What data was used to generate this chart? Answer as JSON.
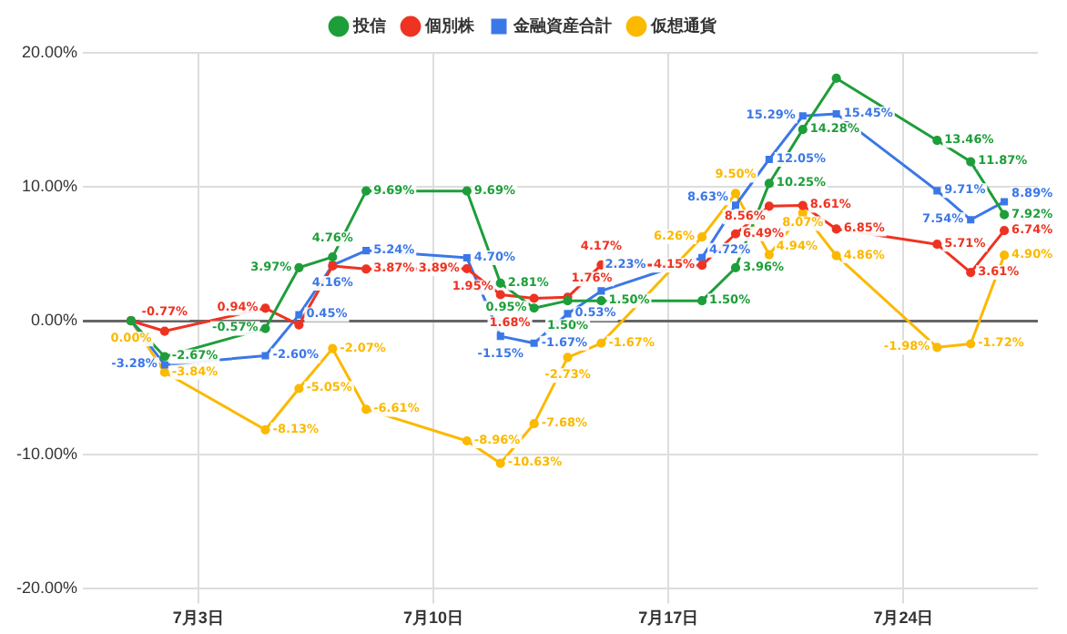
{
  "chart_data": {
    "type": "line",
    "legend": "top",
    "grid": true,
    "line_style": "solid",
    "x": [
      "--07-01",
      "--07-02",
      "--07-05",
      "--07-06",
      "--07-07",
      "--07-08",
      "--07-11",
      "--07-12",
      "--07-13",
      "--07-14",
      "--07-15",
      "--07-18",
      "--07-19",
      "--07-20",
      "--07-21",
      "--07-22",
      "--07-25",
      "--07-26",
      "--07-27"
    ],
    "xlim": [
      "--06-30",
      "--07-28"
    ],
    "xticks": [
      {
        "value": "--07-03",
        "label": "7月3日"
      },
      {
        "value": "--07-10",
        "label": "7月10日"
      },
      {
        "value": "--07-17",
        "label": "7月17日"
      },
      {
        "value": "--07-24",
        "label": "7月24日"
      }
    ],
    "ylim": [
      -20,
      20
    ],
    "yticks": [
      {
        "value": -20,
        "label": "-20.00%"
      },
      {
        "value": -10,
        "label": "-10.00%"
      },
      {
        "value": 0,
        "label": "0.00%"
      },
      {
        "value": 10,
        "label": "10.00%"
      },
      {
        "value": 20,
        "label": "20.00%"
      }
    ],
    "series": [
      {
        "name": "投信",
        "color": "#1e9e3a",
        "marker": "circle",
        "values": [
          0,
          -2.67,
          -0.57,
          3.97,
          4.76,
          9.69,
          9.69,
          2.81,
          0.95,
          1.5,
          1.5,
          1.5,
          3.96,
          10.25,
          14.28,
          18.1,
          13.46,
          11.87,
          7.92
        ],
        "value_labels": [
          null,
          "-2.67%",
          "-0.57%",
          "3.97%",
          "4.76%",
          "9.69%",
          "9.69%",
          "2.81%",
          "0.95%",
          "1.50%",
          "1.50%",
          "1.50%",
          "3.96%",
          "10.25%",
          "14.28%",
          null,
          "13.46%",
          "11.87%",
          "7.92%"
        ]
      },
      {
        "name": "個別株",
        "color": "#ee3322",
        "marker": "circle",
        "values": [
          0,
          -0.77,
          0.94,
          -0.3,
          4.1,
          3.87,
          3.89,
          1.95,
          1.68,
          1.76,
          4.17,
          4.15,
          6.49,
          8.56,
          8.61,
          6.85,
          5.71,
          3.61,
          6.74
        ],
        "value_labels": [
          null,
          "-0.77%",
          "0.94%",
          null,
          null,
          "3.87%",
          "3.89%",
          "1.95%",
          "1.68%",
          "1.76%",
          "4.17%",
          "4.15%",
          "6.49%",
          "8.56%",
          "8.61%",
          "6.85%",
          "5.71%",
          "3.61%",
          "6.74%"
        ]
      },
      {
        "name": "金融資産合計",
        "color": "#3b78e7",
        "marker": "square",
        "values": [
          0,
          -3.28,
          -2.6,
          0.45,
          4.16,
          5.24,
          4.7,
          -1.15,
          -1.67,
          0.53,
          2.23,
          4.72,
          8.63,
          12.05,
          15.29,
          15.45,
          9.71,
          7.54,
          8.89
        ],
        "value_labels": [
          null,
          "-3.28%",
          "-2.60%",
          "0.45%",
          "4.16%",
          "5.24%",
          "4.70%",
          "-1.15%",
          "-1.67%",
          "0.53%",
          "2.23%",
          "4.72%",
          "8.63%",
          "12.05%",
          "15.29%",
          "15.45%",
          "9.71%",
          "7.54%",
          "8.89%"
        ]
      },
      {
        "name": "仮想通貨",
        "color": "#fbb900",
        "marker": "circle",
        "values": [
          0,
          -3.84,
          -8.13,
          -5.05,
          -2.07,
          -6.61,
          -8.96,
          -10.63,
          -7.68,
          -2.73,
          -1.67,
          6.26,
          9.5,
          4.94,
          8.07,
          4.86,
          -1.98,
          -1.72,
          4.9
        ],
        "value_labels": [
          "0.00%",
          "-3.84%",
          "-8.13%",
          "-5.05%",
          "-2.07%",
          "-6.61%",
          "-8.96%",
          "-10.63%",
          "-7.68%",
          "-2.73%",
          "-1.67%",
          "6.26%",
          "9.50%",
          "4.94%",
          "8.07%",
          "4.86%",
          "-1.98%",
          "-1.72%",
          "4.90%"
        ]
      }
    ]
  }
}
